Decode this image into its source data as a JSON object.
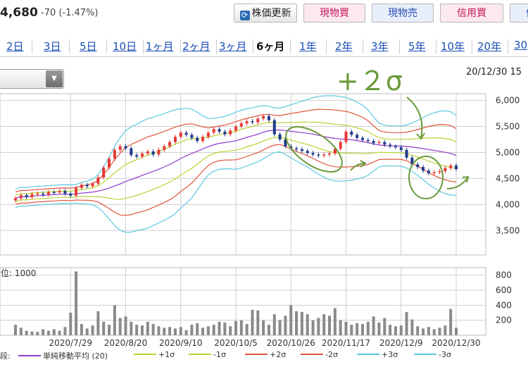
{
  "header": {
    "price": "4,680",
    "change": "-70 (-1.47%)",
    "buttons": {
      "refresh": "株価更新",
      "refresh_icon": "refresh-icon",
      "buy": "現物買",
      "sell": "現物売",
      "margin": "信用買",
      "extra": "信"
    }
  },
  "periods": [
    "2日",
    "3日",
    "5日",
    "10日",
    "1ヶ月",
    "2ヶ月",
    "3ヶ月",
    "6ヶ月",
    "1年",
    "2年",
    "3年",
    "5年",
    "10年",
    "20年",
    "30"
  ],
  "active_period": "6ヶ月",
  "datestamp": "20/12/30 15",
  "annotation_text": "+２σ",
  "volume_unit_label": "位: 1000",
  "legend": [
    {
      "label": "段:",
      "color": ""
    },
    {
      "label": "単純移動平均 (20)",
      "color": "#8e3bc8"
    },
    {
      "label": "+1σ",
      "color": "#b8d432"
    },
    {
      "label": "-1σ",
      "color": "#b8d432"
    },
    {
      "label": "+2σ",
      "color": "#e0533a"
    },
    {
      "label": "-2σ",
      "color": "#e0533a"
    },
    {
      "label": "+3σ",
      "color": "#5cc8e0"
    },
    {
      "label": "-3σ",
      "color": "#5cc8e0"
    }
  ],
  "chart_data": {
    "type": "candlestick",
    "x_tick_labels": [
      "2020/7/29",
      "2020/8/20",
      "2020/9/10",
      "2020/10/5",
      "2020/10/26",
      "2020/11/17",
      "2020/12/9",
      "2020/12/30"
    ],
    "price_axis": {
      "ticks": [
        "6,000",
        "5,500",
        "5,000",
        "4,500",
        "4,000",
        "3,500"
      ],
      "values": [
        6000,
        5500,
        5000,
        4500,
        4000,
        3500
      ],
      "ylim": [
        3030,
        6130
      ]
    },
    "volume_axis": {
      "ticks": [
        "800",
        "600",
        "400",
        "200"
      ],
      "values": [
        800,
        600,
        400,
        200
      ],
      "ylim": [
        0,
        900
      ]
    },
    "colors": {
      "up": "#e53935",
      "down": "#1e3a8a",
      "volume": "#8a8a8a",
      "grid": "#cfcfcf",
      "annotation": "#6a9a3a",
      "sma": "#8e3bc8",
      "s1": "#b8d432",
      "s2": "#e0533a",
      "s3": "#5cc8e0"
    },
    "close": [
      4120,
      4180,
      4140,
      4200,
      4210,
      4190,
      4240,
      4230,
      4260,
      4210,
      4170,
      4320,
      4380,
      4350,
      4400,
      4520,
      4710,
      4880,
      5050,
      5120,
      5080,
      4950,
      4920,
      4980,
      5020,
      4960,
      5050,
      5120,
      5200,
      5300,
      5380,
      5340,
      5280,
      5220,
      5300,
      5380,
      5450,
      5400,
      5350,
      5420,
      5500,
      5560,
      5600,
      5580,
      5650,
      5700,
      5620,
      5350,
      5250,
      5120,
      5080,
      5060,
      5030,
      4990,
      4960,
      4940,
      4960,
      4980,
      5070,
      5200,
      5400,
      5340,
      5280,
      5240,
      5220,
      5180,
      5200,
      5150,
      5120,
      5100,
      5050,
      4900,
      4770,
      4720,
      4650,
      4600,
      4620,
      4640,
      4700,
      4750,
      4680
    ],
    "volume": [
      140,
      100,
      60,
      50,
      45,
      80,
      60,
      80,
      60,
      110,
      300,
      850,
      150,
      90,
      130,
      320,
      180,
      140,
      400,
      230,
      250,
      180,
      140,
      130,
      180,
      150,
      120,
      100,
      110,
      90,
      110,
      70,
      140,
      160,
      100,
      120,
      140,
      180,
      170,
      120,
      190,
      200,
      150,
      340,
      330,
      200,
      140,
      280,
      200,
      260,
      400,
      320,
      310,
      280,
      200,
      230,
      280,
      260,
      360,
      200,
      180,
      140,
      160,
      150,
      180,
      250,
      170,
      230,
      140,
      120,
      130,
      310,
      210,
      120,
      90,
      110,
      80,
      100,
      130,
      350,
      100
    ]
  }
}
